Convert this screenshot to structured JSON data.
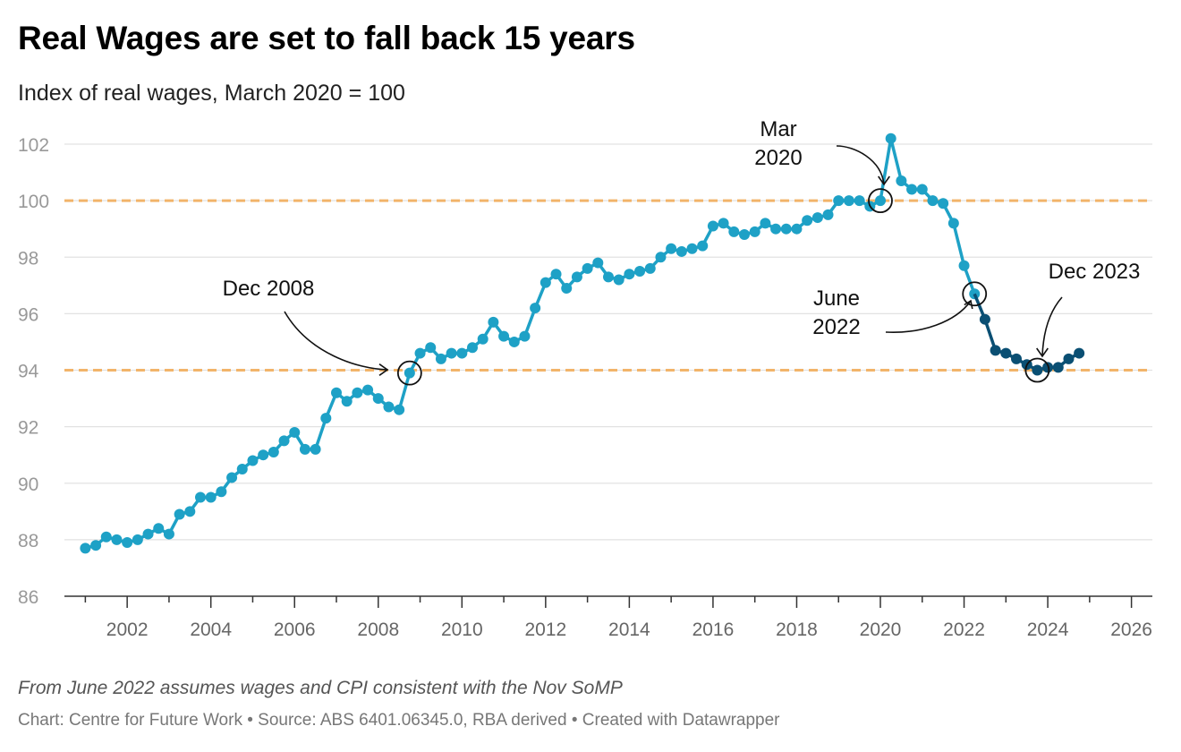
{
  "header": {
    "title": "Real Wages are set to fall back 15 years",
    "subtitle": "Index of real wages, March 2020 = 100"
  },
  "footer": {
    "note": "From June 2022 assumes wages and CPI consistent with the Nov SoMP",
    "source": "Chart: Centre for Future Work • Source: ABS 6401.06345.0, RBA derived • Created with Datawrapper"
  },
  "colors": {
    "actual": "#1ea1c6",
    "projected": "#0a4f73",
    "reference": "#f2b46a",
    "grid": "#e2e2e2"
  },
  "chart_data": {
    "type": "line",
    "xlim": [
      2000.5,
      2026.5
    ],
    "ylim": [
      86,
      102
    ],
    "y_ticks": [
      86,
      88,
      90,
      92,
      94,
      96,
      98,
      100,
      102
    ],
    "x_ticks": [
      2002,
      2004,
      2006,
      2008,
      2010,
      2012,
      2014,
      2016,
      2018,
      2020,
      2022,
      2024,
      2026
    ],
    "reference_lines": [
      100,
      94
    ],
    "grid": true,
    "series": [
      {
        "values": [
          [
            2001.0,
            87.7
          ],
          [
            2001.25,
            87.8
          ],
          [
            2001.5,
            88.1
          ],
          [
            2001.75,
            88.0
          ],
          [
            2002.0,
            87.9
          ],
          [
            2002.25,
            88.0
          ],
          [
            2002.5,
            88.2
          ],
          [
            2002.75,
            88.4
          ],
          [
            2003.0,
            88.2
          ],
          [
            2003.25,
            88.9
          ],
          [
            2003.5,
            89.0
          ],
          [
            2003.75,
            89.5
          ],
          [
            2004.0,
            89.5
          ],
          [
            2004.25,
            89.7
          ],
          [
            2004.5,
            90.2
          ],
          [
            2004.75,
            90.5
          ],
          [
            2005.0,
            90.8
          ],
          [
            2005.25,
            91.0
          ],
          [
            2005.5,
            91.1
          ],
          [
            2005.75,
            91.5
          ],
          [
            2006.0,
            91.8
          ],
          [
            2006.25,
            91.2
          ],
          [
            2006.5,
            91.2
          ],
          [
            2006.75,
            92.3
          ],
          [
            2007.0,
            93.2
          ],
          [
            2007.25,
            92.9
          ],
          [
            2007.5,
            93.2
          ],
          [
            2007.75,
            93.3
          ],
          [
            2008.0,
            93.0
          ],
          [
            2008.25,
            92.7
          ],
          [
            2008.5,
            92.6
          ],
          [
            2008.75,
            93.9
          ],
          [
            2009.0,
            94.6
          ],
          [
            2009.25,
            94.8
          ],
          [
            2009.5,
            94.4
          ],
          [
            2009.75,
            94.6
          ],
          [
            2010.0,
            94.6
          ],
          [
            2010.25,
            94.8
          ],
          [
            2010.5,
            95.1
          ],
          [
            2010.75,
            95.7
          ],
          [
            2011.0,
            95.2
          ],
          [
            2011.25,
            95.0
          ],
          [
            2011.5,
            95.2
          ],
          [
            2011.75,
            96.2
          ],
          [
            2012.0,
            97.1
          ],
          [
            2012.25,
            97.4
          ],
          [
            2012.5,
            96.9
          ],
          [
            2012.75,
            97.3
          ],
          [
            2013.0,
            97.6
          ],
          [
            2013.25,
            97.8
          ],
          [
            2013.5,
            97.3
          ],
          [
            2013.75,
            97.2
          ],
          [
            2014.0,
            97.4
          ],
          [
            2014.25,
            97.5
          ],
          [
            2014.5,
            97.6
          ],
          [
            2014.75,
            98.0
          ],
          [
            2015.0,
            98.3
          ],
          [
            2015.25,
            98.2
          ],
          [
            2015.5,
            98.3
          ],
          [
            2015.75,
            98.4
          ],
          [
            2016.0,
            99.1
          ],
          [
            2016.25,
            99.2
          ],
          [
            2016.5,
            98.9
          ],
          [
            2016.75,
            98.8
          ],
          [
            2017.0,
            98.9
          ],
          [
            2017.25,
            99.2
          ],
          [
            2017.5,
            99.0
          ],
          [
            2017.75,
            99.0
          ],
          [
            2018.0,
            99.0
          ],
          [
            2018.25,
            99.3
          ],
          [
            2018.5,
            99.4
          ],
          [
            2018.75,
            99.5
          ],
          [
            2019.0,
            100.0
          ],
          [
            2019.25,
            100.0
          ],
          [
            2019.5,
            100.0
          ],
          [
            2019.75,
            99.8
          ],
          [
            2020.0,
            100.0
          ],
          [
            2020.25,
            102.2
          ],
          [
            2020.5,
            100.7
          ],
          [
            2020.75,
            100.4
          ],
          [
            2021.0,
            100.4
          ],
          [
            2021.25,
            100.0
          ],
          [
            2021.5,
            99.9
          ],
          [
            2021.75,
            99.2
          ],
          [
            2022.0,
            97.7
          ],
          [
            2022.25,
            96.7
          ]
        ]
      },
      {
        "values": [
          [
            2022.25,
            96.7
          ],
          [
            2022.5,
            95.8
          ],
          [
            2022.75,
            94.7
          ],
          [
            2023.0,
            94.6
          ],
          [
            2023.25,
            94.4
          ],
          [
            2023.5,
            94.2
          ],
          [
            2023.75,
            94.0
          ],
          [
            2024.0,
            94.1
          ],
          [
            2024.25,
            94.1
          ],
          [
            2024.5,
            94.4
          ],
          [
            2024.75,
            94.6
          ]
        ]
      }
    ],
    "annotations": [
      {
        "lines": [
          "Dec 2008"
        ],
        "x": 2008.75,
        "y": 93.9
      },
      {
        "lines": [
          "Mar",
          "2020"
        ],
        "x": 2020.0,
        "y": 100.0
      },
      {
        "lines": [
          "June",
          "2022"
        ],
        "x": 2022.25,
        "y": 96.7
      },
      {
        "lines": [
          "Dec 2023"
        ],
        "x": 2023.75,
        "y": 94.0
      }
    ]
  }
}
